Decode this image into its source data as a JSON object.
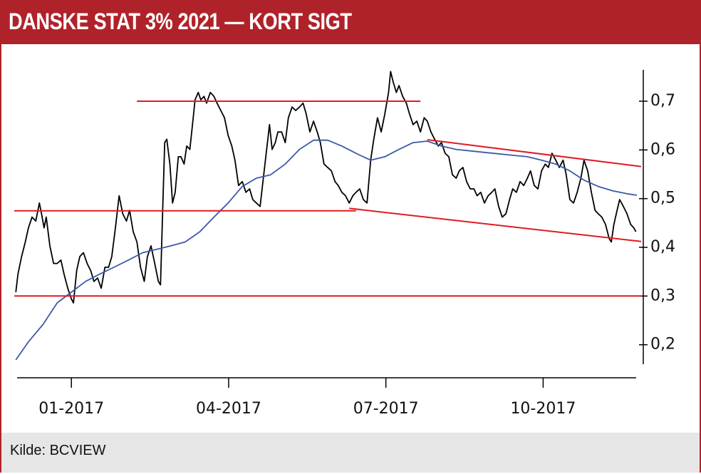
{
  "chart_data": {
    "type": "line",
    "title": "DANSKE STAT 3% 2021 — KORT SIGT",
    "source": "Kilde: BCVIEW",
    "xlim": [
      -0.09,
      11.87
    ],
    "xticks": [
      {
        "value": 1,
        "label": "01-2017"
      },
      {
        "value": 4,
        "label": "04-2017"
      },
      {
        "value": 7,
        "label": "07-2017"
      },
      {
        "value": 10,
        "label": "10-2017"
      }
    ],
    "ylim": [
      0.16,
      0.76
    ],
    "yticks": [
      {
        "value": 0.2,
        "label": "0,2"
      },
      {
        "value": 0.3,
        "label": "0,3"
      },
      {
        "value": 0.4,
        "label": "0,4"
      },
      {
        "value": 0.5,
        "label": "0,5"
      },
      {
        "value": 0.6,
        "label": "0,6"
      },
      {
        "value": 0.7,
        "label": "0,7"
      }
    ],
    "series": [
      {
        "color": "#000000",
        "x": [
          -0.06,
          -0.02,
          0.05,
          0.12,
          0.18,
          0.25,
          0.32,
          0.39,
          0.43,
          0.48,
          0.52,
          0.59,
          0.66,
          0.73,
          0.8,
          0.86,
          0.93,
          1.0,
          1.04,
          1.1,
          1.16,
          1.23,
          1.3,
          1.37,
          1.43,
          1.5,
          1.57,
          1.64,
          1.71,
          1.77,
          1.84,
          1.91,
          1.98,
          2.05,
          2.11,
          2.18,
          2.25,
          2.32,
          2.39,
          2.45,
          2.52,
          2.59,
          2.66,
          2.7,
          2.74,
          2.78,
          2.82,
          2.88,
          2.93,
          2.98,
          3.04,
          3.09,
          3.15,
          3.2,
          3.26,
          3.31,
          3.36,
          3.42,
          3.47,
          3.53,
          3.58,
          3.65,
          3.72,
          3.78,
          3.85,
          3.92,
          3.99,
          4.06,
          4.12,
          4.19,
          4.26,
          4.33,
          4.4,
          4.46,
          4.53,
          4.6,
          4.67,
          4.74,
          4.78,
          4.83,
          4.89,
          4.94,
          5.01,
          5.08,
          5.14,
          5.21,
          5.28,
          5.35,
          5.42,
          5.48,
          5.55,
          5.62,
          5.69,
          5.75,
          5.82,
          5.89,
          5.96,
          6.03,
          6.09,
          6.16,
          6.23,
          6.3,
          6.37,
          6.43,
          6.5,
          6.57,
          6.64,
          6.71,
          6.77,
          6.84,
          6.91,
          6.98,
          7.05,
          7.09,
          7.14,
          7.2,
          7.25,
          7.32,
          7.39,
          7.45,
          7.52,
          7.59,
          7.66,
          7.73,
          7.79,
          7.86,
          7.93,
          8.0,
          8.06,
          8.13,
          8.2,
          8.27,
          8.34,
          8.4,
          8.47,
          8.54,
          8.61,
          8.68,
          8.74,
          8.81,
          8.88,
          8.95,
          9.02,
          9.08,
          9.15,
          9.22,
          9.29,
          9.36,
          9.42,
          9.49,
          9.56,
          9.63,
          9.7,
          9.76,
          9.83,
          9.9,
          9.97,
          10.04,
          10.1,
          10.17,
          10.24,
          10.31,
          10.38,
          10.44,
          10.51,
          10.58,
          10.65,
          10.72,
          10.78,
          10.85,
          10.92,
          10.99,
          11.05,
          11.12,
          11.19,
          11.26,
          11.3,
          11.35,
          11.41,
          11.46,
          11.53,
          11.6,
          11.67,
          11.73,
          11.77
        ],
        "values": [
          0.308,
          0.345,
          0.381,
          0.411,
          0.44,
          0.462,
          0.454,
          0.491,
          0.469,
          0.44,
          0.462,
          0.403,
          0.367,
          0.367,
          0.374,
          0.345,
          0.316,
          0.294,
          0.286,
          0.352,
          0.381,
          0.389,
          0.367,
          0.352,
          0.33,
          0.337,
          0.316,
          0.359,
          0.359,
          0.381,
          0.44,
          0.506,
          0.469,
          0.454,
          0.476,
          0.432,
          0.411,
          0.359,
          0.33,
          0.381,
          0.403,
          0.367,
          0.33,
          0.323,
          0.469,
          0.615,
          0.622,
          0.571,
          0.491,
          0.513,
          0.586,
          0.586,
          0.571,
          0.608,
          0.601,
          0.652,
          0.703,
          0.718,
          0.703,
          0.71,
          0.696,
          0.718,
          0.71,
          0.696,
          0.681,
          0.666,
          0.63,
          0.608,
          0.579,
          0.527,
          0.535,
          0.513,
          0.52,
          0.498,
          0.491,
          0.484,
          0.549,
          0.615,
          0.652,
          0.601,
          0.615,
          0.637,
          0.637,
          0.615,
          0.666,
          0.688,
          0.681,
          0.688,
          0.696,
          0.674,
          0.637,
          0.659,
          0.637,
          0.615,
          0.571,
          0.564,
          0.557,
          0.535,
          0.527,
          0.513,
          0.506,
          0.491,
          0.506,
          0.513,
          0.52,
          0.498,
          0.491,
          0.579,
          0.622,
          0.666,
          0.637,
          0.674,
          0.718,
          0.761,
          0.739,
          0.718,
          0.732,
          0.71,
          0.696,
          0.674,
          0.652,
          0.659,
          0.637,
          0.666,
          0.659,
          0.637,
          0.622,
          0.608,
          0.615,
          0.593,
          0.586,
          0.549,
          0.542,
          0.557,
          0.564,
          0.535,
          0.52,
          0.52,
          0.506,
          0.513,
          0.491,
          0.506,
          0.513,
          0.52,
          0.484,
          0.462,
          0.469,
          0.498,
          0.52,
          0.513,
          0.535,
          0.527,
          0.542,
          0.557,
          0.527,
          0.52,
          0.557,
          0.571,
          0.564,
          0.593,
          0.579,
          0.564,
          0.579,
          0.549,
          0.498,
          0.491,
          0.513,
          0.542,
          0.579,
          0.557,
          0.513,
          0.476,
          0.469,
          0.462,
          0.447,
          0.418,
          0.411,
          0.447,
          0.476,
          0.498,
          0.484,
          0.469,
          0.447,
          0.44,
          0.432
        ]
      },
      {
        "color": "#3a5aa8",
        "x": [
          -0.06,
          0.18,
          0.46,
          0.73,
          1.0,
          1.27,
          1.54,
          1.81,
          2.09,
          2.36,
          2.63,
          2.9,
          3.17,
          3.45,
          3.72,
          3.99,
          4.26,
          4.53,
          4.8,
          5.08,
          5.35,
          5.62,
          5.89,
          6.16,
          6.43,
          6.71,
          6.98,
          7.25,
          7.52,
          7.79,
          8.06,
          8.34,
          8.61,
          8.88,
          9.15,
          9.42,
          9.7,
          9.97,
          10.24,
          10.51,
          10.78,
          11.05,
          11.33,
          11.6,
          11.79
        ],
        "values": [
          0.169,
          0.206,
          0.242,
          0.286,
          0.308,
          0.33,
          0.345,
          0.359,
          0.374,
          0.389,
          0.396,
          0.403,
          0.411,
          0.432,
          0.462,
          0.491,
          0.525,
          0.542,
          0.549,
          0.571,
          0.601,
          0.62,
          0.62,
          0.608,
          0.593,
          0.579,
          0.586,
          0.601,
          0.615,
          0.618,
          0.608,
          0.601,
          0.598,
          0.595,
          0.592,
          0.589,
          0.586,
          0.579,
          0.571,
          0.557,
          0.538,
          0.525,
          0.516,
          0.51,
          0.507
        ]
      },
      {
        "color": "#e01b22",
        "x": [
          2.25,
          7.66
        ],
        "values": [
          0.7,
          0.7
        ]
      },
      {
        "color": "#e01b22",
        "x": [
          -0.09,
          6.43
        ],
        "values": [
          0.475,
          0.475
        ]
      },
      {
        "color": "#e01b22",
        "x": [
          6.3,
          11.87
        ],
        "values": [
          0.48,
          0.412
        ]
      },
      {
        "color": "#e01b22",
        "x": [
          7.79,
          11.87
        ],
        "values": [
          0.621,
          0.566
        ]
      },
      {
        "color": "#e01b22",
        "x": [
          -0.09,
          11.87
        ],
        "values": [
          0.3,
          0.3
        ]
      }
    ]
  }
}
